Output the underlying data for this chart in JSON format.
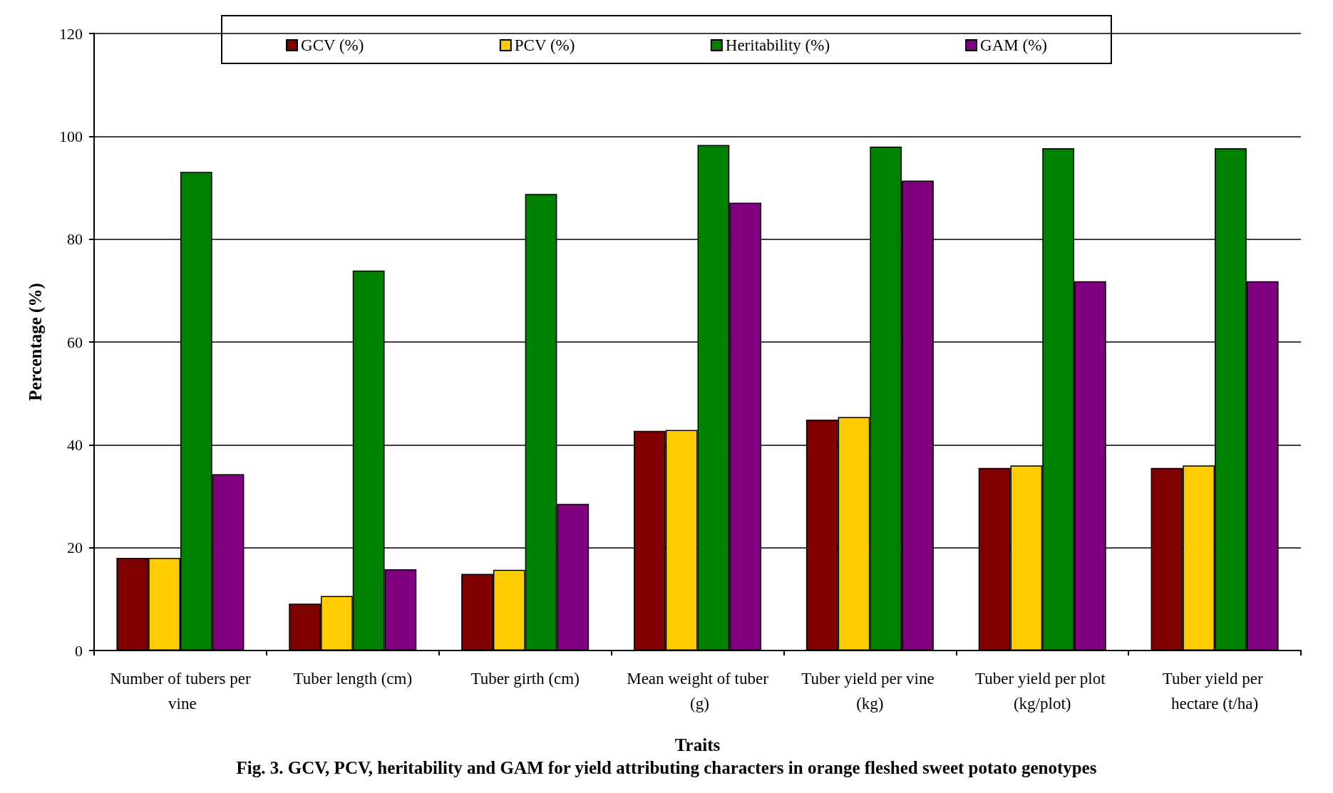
{
  "chart_data": {
    "type": "bar",
    "title": "Fig. 3. GCV, PCV, heritability and GAM for yield attributing characters in orange fleshed sweet potato genotypes",
    "xlabel": "Traits",
    "ylabel": "Percentage (%)",
    "categories": [
      "Number of tubers per vine",
      "Tuber length (cm)",
      "Tuber girth (cm)",
      "Mean weight of tuber (g)",
      "Tuber yield per vine (kg)",
      "Tuber yield per plot (kg/plot)",
      "Tuber yield per hectare (t/ha)"
    ],
    "series": [
      {
        "name": "GCV (%)",
        "color": "#800000",
        "values": [
          18.0,
          9.1,
          14.9,
          42.7,
          44.9,
          35.5,
          35.5
        ]
      },
      {
        "name": "PCV (%)",
        "color": "#ffcc00",
        "values": [
          18.0,
          10.6,
          15.7,
          42.9,
          45.4,
          36.0,
          36.0
        ]
      },
      {
        "name": "Heritability (%)",
        "color": "#008000",
        "values": [
          93.1,
          73.9,
          88.8,
          98.3,
          98.0,
          97.7,
          97.7
        ]
      },
      {
        "name": "GAM (%)",
        "color": "#800080",
        "values": [
          34.3,
          15.8,
          28.5,
          87.1,
          91.4,
          71.8,
          71.8
        ]
      }
    ],
    "ylim": [
      0,
      120
    ],
    "yticks": [
      0,
      20,
      40,
      60,
      80,
      100,
      120
    ],
    "grid": "y",
    "legend": "top"
  }
}
